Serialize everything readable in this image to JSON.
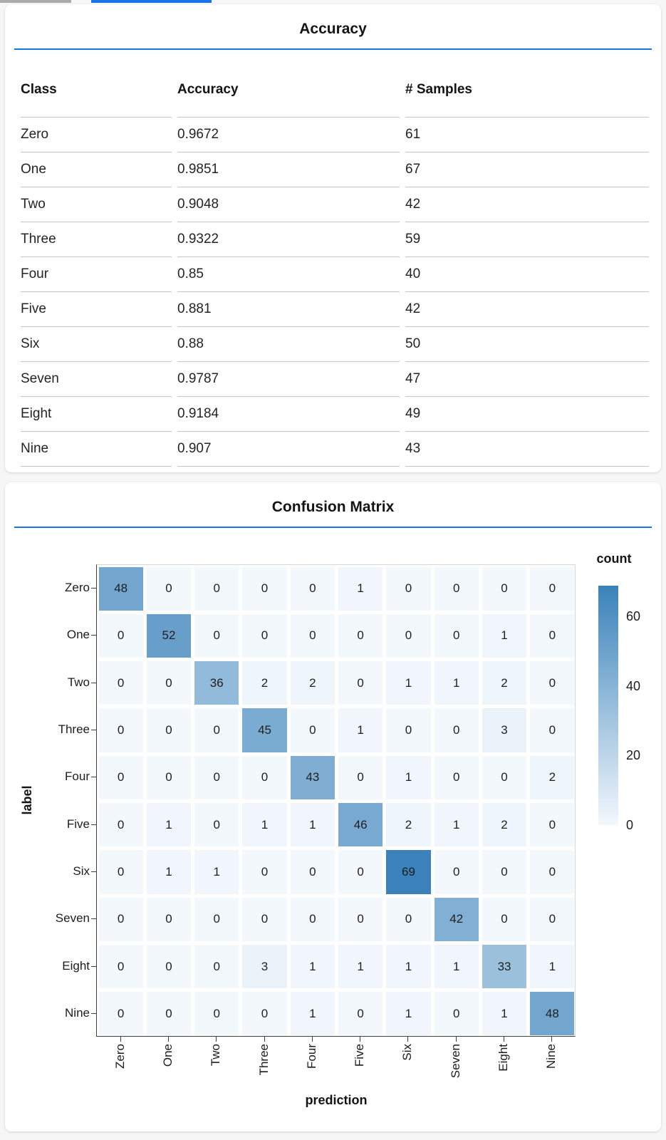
{
  "tabs": {
    "inactive_color": "#ababab",
    "active_color": "#1a73e8"
  },
  "rule_color": "#1a73e8",
  "panels": [
    {
      "title": "Accuracy"
    },
    {
      "title": "Confusion Matrix"
    }
  ],
  "chart_data": [
    {
      "type": "table",
      "title": "Accuracy",
      "columns": [
        "Class",
        "Accuracy",
        "# Samples"
      ],
      "rows": [
        [
          "Zero",
          "0.9672",
          "61"
        ],
        [
          "One",
          "0.9851",
          "67"
        ],
        [
          "Two",
          "0.9048",
          "42"
        ],
        [
          "Three",
          "0.9322",
          "59"
        ],
        [
          "Four",
          "0.85",
          "40"
        ],
        [
          "Five",
          "0.881",
          "42"
        ],
        [
          "Six",
          "0.88",
          "50"
        ],
        [
          "Seven",
          "0.9787",
          "47"
        ],
        [
          "Eight",
          "0.9184",
          "49"
        ],
        [
          "Nine",
          "0.907",
          "43"
        ]
      ]
    },
    {
      "type": "heatmap",
      "title": "Confusion Matrix",
      "xlabel": "prediction",
      "ylabel": "label",
      "x_categories": [
        "Zero",
        "One",
        "Two",
        "Three",
        "Four",
        "Five",
        "Six",
        "Seven",
        "Eight",
        "Nine"
      ],
      "y_categories": [
        "Zero",
        "One",
        "Two",
        "Three",
        "Four",
        "Five",
        "Six",
        "Seven",
        "Eight",
        "Nine"
      ],
      "values": [
        [
          48,
          0,
          0,
          0,
          0,
          1,
          0,
          0,
          0,
          0
        ],
        [
          0,
          52,
          0,
          0,
          0,
          0,
          0,
          0,
          1,
          0
        ],
        [
          0,
          0,
          36,
          2,
          2,
          0,
          1,
          1,
          2,
          0
        ],
        [
          0,
          0,
          0,
          45,
          0,
          1,
          0,
          0,
          3,
          0
        ],
        [
          0,
          0,
          0,
          0,
          43,
          0,
          1,
          0,
          0,
          2
        ],
        [
          0,
          1,
          0,
          1,
          1,
          46,
          2,
          1,
          2,
          0
        ],
        [
          0,
          1,
          1,
          0,
          0,
          0,
          69,
          0,
          0,
          0
        ],
        [
          0,
          0,
          0,
          0,
          0,
          0,
          0,
          42,
          0,
          0
        ],
        [
          0,
          0,
          0,
          3,
          1,
          1,
          1,
          1,
          33,
          1
        ],
        [
          0,
          0,
          0,
          0,
          1,
          0,
          1,
          0,
          1,
          48
        ]
      ],
      "legend": {
        "title": "count",
        "ticks": [
          60,
          40,
          20,
          0
        ],
        "position": "right"
      },
      "color_scale": {
        "domain": [
          0,
          69
        ],
        "range": [
          "#f3f8fd",
          "#3a82b9"
        ]
      },
      "layout": {
        "grid": false,
        "x_label_angle": -90
      }
    }
  ]
}
